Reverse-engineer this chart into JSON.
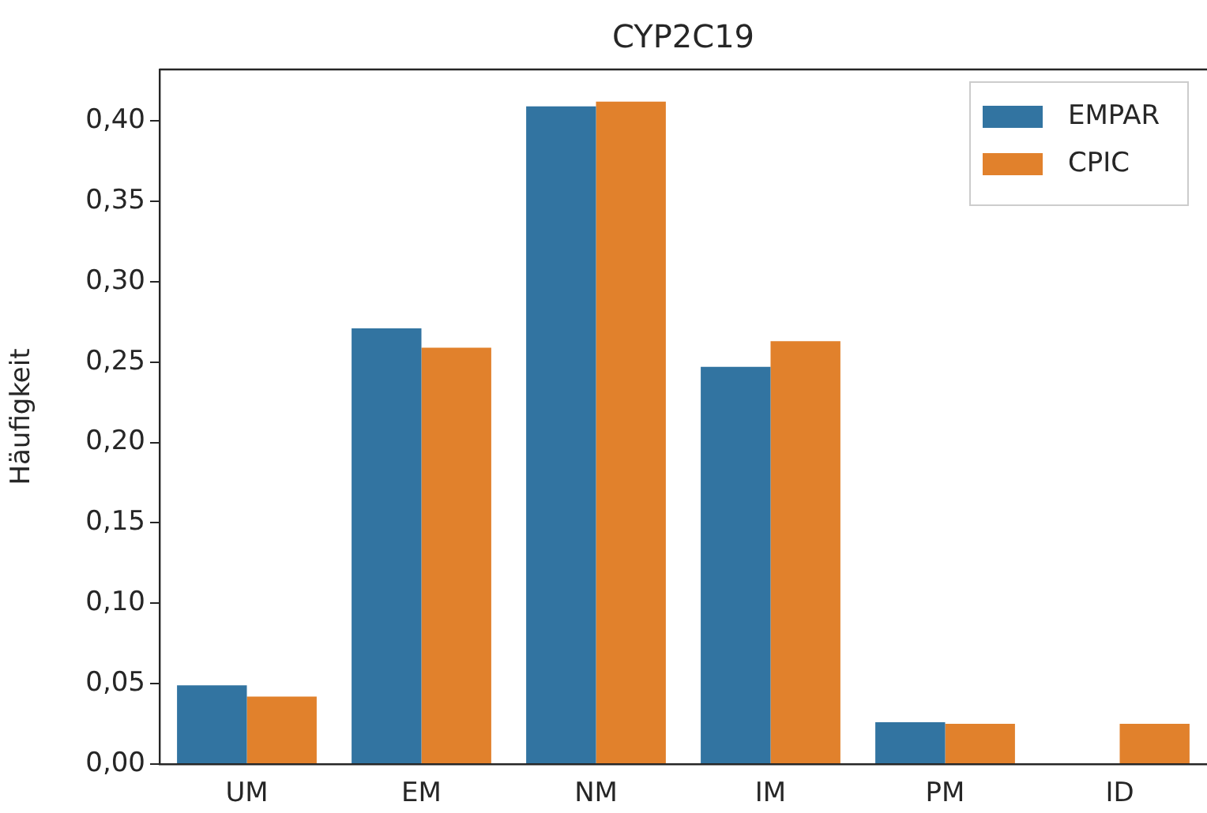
{
  "chart_data": {
    "type": "bar",
    "title": "CYP2C19",
    "ylabel": "Häufigkeit",
    "categories": [
      "UM",
      "EM",
      "NM",
      "IM",
      "PM",
      "ID"
    ],
    "series": [
      {
        "name": "EMPAR",
        "color": "#3274a1",
        "values": [
          0.049,
          0.271,
          0.409,
          0.247,
          0.026,
          null
        ]
      },
      {
        "name": "CPIC",
        "color": "#e1812c",
        "values": [
          0.042,
          0.259,
          0.412,
          0.263,
          0.025,
          0.025
        ]
      }
    ],
    "ylim": [
      0,
      0.432
    ],
    "yticks": [
      {
        "value": 0,
        "label": "0,00"
      },
      {
        "value": 0.05,
        "label": "0,05"
      },
      {
        "value": 0.1,
        "label": "0,10"
      },
      {
        "value": 0.15,
        "label": "0,15"
      },
      {
        "value": 0.2,
        "label": "0,20"
      },
      {
        "value": 0.25,
        "label": "0,25"
      },
      {
        "value": 0.3,
        "label": "0,30"
      },
      {
        "value": 0.35,
        "label": "0,35"
      },
      {
        "value": 0.4,
        "label": "0,40"
      }
    ],
    "grid": false,
    "legend": "top right"
  }
}
